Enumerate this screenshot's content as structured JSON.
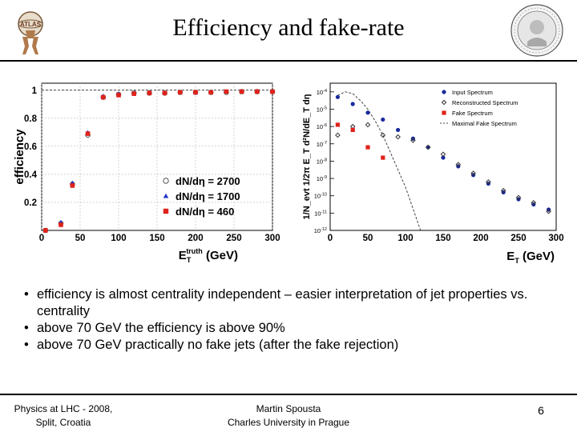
{
  "slide": {
    "title": "Efficiency and fake-rate",
    "logo_left": "ATLAS logo",
    "logo_right": "Charles University seal",
    "bullets": [
      "efficiency is almost centrality independent – easier interpretation of  jet properties vs. centrality",
      "above 70 GeV the efficiency is above 90%",
      "above 70 GeV practically no fake jets (after the fake rejection)"
    ],
    "footer": {
      "left_line1": "Physics at LHC - 2008,",
      "left_line2": "Split, Croatia",
      "center_line1": "Martin Spousta",
      "center_line2": "Charles University in Prague",
      "page_number": "6"
    }
  },
  "chart_data": [
    {
      "type": "scatter",
      "ylabel": "efficiency",
      "xlabel": "E_T^truth (GeV)",
      "xlim": [
        0,
        300
      ],
      "ylim": [
        0,
        1.05
      ],
      "xticks": [
        "0",
        "50",
        "100",
        "150",
        "200",
        "250",
        "300"
      ],
      "yticks": [
        "0.2",
        "0.4",
        "0.6",
        "0.8",
        "1"
      ],
      "legend_position": "bottom-right",
      "series": [
        {
          "name": "dN/dη = 2700",
          "marker": "open-circle",
          "color": "#555555",
          "x": [
            5,
            25,
            40,
            60,
            80,
            100,
            120,
            140,
            160,
            180,
            200,
            220,
            240,
            260,
            280,
            300
          ],
          "y": [
            0.0,
            0.05,
            0.33,
            0.68,
            0.95,
            0.97,
            0.98,
            0.98,
            0.98,
            0.985,
            0.985,
            0.985,
            0.985,
            0.99,
            0.99,
            0.99
          ]
        },
        {
          "name": "dN/dη = 1700",
          "marker": "triangle",
          "color": "#2233cc",
          "x": [
            5,
            25,
            40,
            60,
            80,
            100,
            120,
            140,
            160,
            180,
            200,
            220,
            240,
            260,
            280,
            300
          ],
          "y": [
            0.0,
            0.06,
            0.34,
            0.7,
            0.96,
            0.975,
            0.98,
            0.985,
            0.985,
            0.985,
            0.985,
            0.99,
            0.99,
            0.99,
            0.99,
            0.99
          ]
        },
        {
          "name": "dN/dη = 460",
          "marker": "square",
          "color": "#e0221b",
          "x": [
            5,
            25,
            40,
            60,
            80,
            100,
            120,
            140,
            160,
            180,
            200,
            220,
            240,
            260,
            280,
            300
          ],
          "y": [
            0.0,
            0.04,
            0.32,
            0.69,
            0.95,
            0.965,
            0.975,
            0.98,
            0.98,
            0.985,
            0.985,
            0.985,
            0.99,
            0.99,
            0.99,
            0.99
          ]
        }
      ]
    },
    {
      "type": "scatter",
      "ylabel": "1/N_evt 1/2π E_T d²N/dE_T dη",
      "xlabel": "E_T (GeV)",
      "xlim": [
        0,
        300
      ],
      "ylog": true,
      "ylim_exp": [
        -12,
        -3.5
      ],
      "xticks": [
        "0",
        "50",
        "100",
        "150",
        "200",
        "250",
        "300"
      ],
      "yticks": [
        "10^-12",
        "10^-11",
        "10^-10",
        "10^-9",
        "10^-8",
        "10^-7",
        "10^-6",
        "10^-5",
        "10^-4"
      ],
      "legend_position": "top-right",
      "series": [
        {
          "name": "Input Spectrum",
          "marker": "filled-circle",
          "color": "#1a2a9c",
          "x": [
            10,
            30,
            50,
            70,
            90,
            110,
            130,
            150,
            170,
            190,
            210,
            230,
            250,
            270,
            290
          ],
          "y_exp": [
            -4.3,
            -4.7,
            -5.2,
            -5.6,
            -6.2,
            -6.7,
            -7.2,
            -7.8,
            -8.3,
            -8.8,
            -9.3,
            -9.8,
            -10.2,
            -10.5,
            -10.8
          ]
        },
        {
          "name": "Reconstructed Spectrum",
          "marker": "open-diamond",
          "color": "#333333",
          "x": [
            10,
            30,
            50,
            70,
            90,
            110,
            130,
            150,
            170,
            190,
            210,
            230,
            250,
            270,
            290
          ],
          "y_exp": [
            -6.5,
            -6.0,
            -5.9,
            -6.5,
            -6.6,
            -6.8,
            -7.2,
            -7.6,
            -8.2,
            -8.7,
            -9.2,
            -9.7,
            -10.1,
            -10.4,
            -10.9
          ]
        },
        {
          "name": "Fake Spectrum",
          "marker": "square",
          "color": "#e0221b",
          "x": [
            10,
            30,
            50,
            70
          ],
          "y_exp": [
            -5.9,
            -6.2,
            -7.2,
            -7.8
          ]
        },
        {
          "name": "Maximal Fake Spectrum",
          "marker": "dashed-line",
          "color": "#444444",
          "x": [
            10,
            20,
            30,
            40,
            50,
            60,
            70,
            80,
            100,
            120
          ],
          "y_exp": [
            -4.2,
            -4.0,
            -4.1,
            -4.5,
            -5.0,
            -5.7,
            -6.5,
            -7.5,
            -9.5,
            -12
          ]
        }
      ]
    }
  ]
}
